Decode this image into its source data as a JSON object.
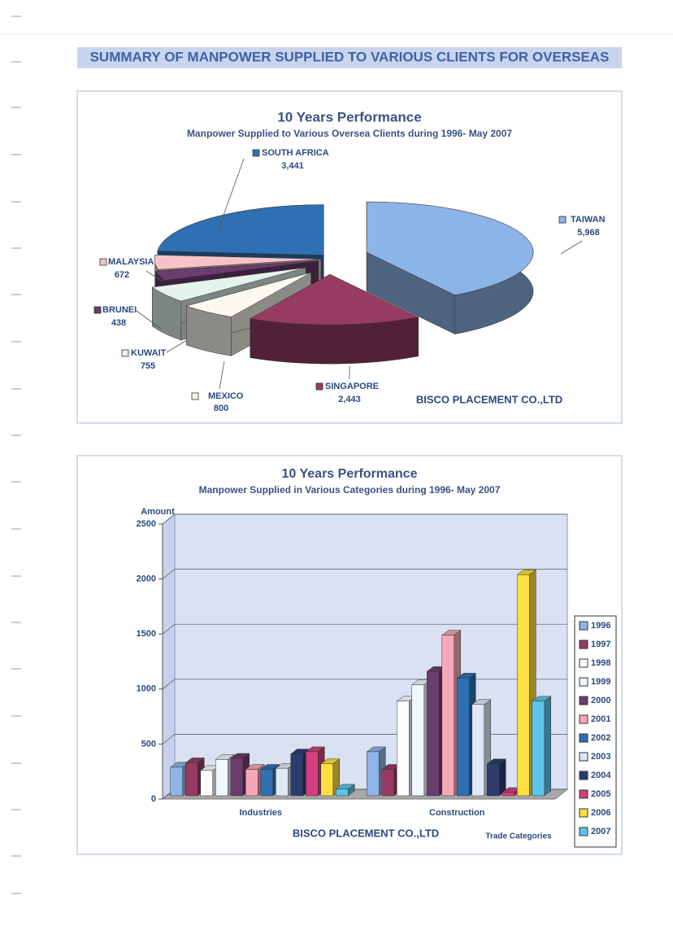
{
  "header": {
    "title": "SUMMARY OF MANPOWER SUPPLIED TO VARIOUS CLIENTS FOR OVERSEAS"
  },
  "chart_data": [
    {
      "type": "pie",
      "title": "10 Years Performance",
      "subtitle": "Manpower Supplied to Various Oversea Clients during 1996- May 2007",
      "categories": [
        "TAIWAN",
        "SINGAPORE",
        "MEXICO",
        "KUWAIT",
        "BRUNEI",
        "MALAYSIA",
        "SOUTH AFRICA"
      ],
      "values": [
        5968,
        2443,
        800,
        755,
        438,
        672,
        3441
      ],
      "value_labels": [
        "5,968",
        "2,443",
        "800",
        "755",
        "438",
        "672",
        "3,441"
      ],
      "colors": [
        "#8db4e6",
        "#963c62",
        "#fcfaf0",
        "#e4f4ec",
        "#6c3c6e",
        "#f6c4c8",
        "#2f70b2"
      ],
      "annotation": "BISCO PLACEMENT CO.,LTD"
    },
    {
      "type": "bar3d",
      "title": "10 Years Performance",
      "subtitle": "Manpower Supplied in Various Categories during 1996- May 2007",
      "y_label": "Amount",
      "x_label": "Trade Categories",
      "annotation": "BISCO PLACEMENT CO.,LTD",
      "categories": [
        "Industries",
        "Construction"
      ],
      "series": [
        {
          "name": "1996",
          "color": "#8db4e6",
          "values": [
            260,
            400
          ]
        },
        {
          "name": "1997",
          "color": "#963c62",
          "values": [
            300,
            240
          ]
        },
        {
          "name": "1998",
          "color": "#ffffff",
          "values": [
            230,
            860
          ]
        },
        {
          "name": "1999",
          "color": "#f0f8ff",
          "values": [
            330,
            1010
          ]
        },
        {
          "name": "2000",
          "color": "#6c3c6e",
          "values": [
            340,
            1130
          ]
        },
        {
          "name": "2001",
          "color": "#f6a8b8",
          "values": [
            240,
            1460
          ]
        },
        {
          "name": "2002",
          "color": "#2f70b2",
          "values": [
            240,
            1070
          ]
        },
        {
          "name": "2003",
          "color": "#e0e8f8",
          "values": [
            250,
            830
          ]
        },
        {
          "name": "2004",
          "color": "#2c3c6c",
          "values": [
            380,
            290
          ]
        },
        {
          "name": "2005",
          "color": "#d2407e",
          "values": [
            400,
            20
          ]
        },
        {
          "name": "2006",
          "color": "#ffe040",
          "values": [
            290,
            2010
          ]
        },
        {
          "name": "2007",
          "color": "#5cc6e8",
          "values": [
            60,
            860
          ]
        }
      ],
      "ylim": [
        0,
        2500
      ],
      "yticks": [
        0,
        500,
        1000,
        1500,
        2000,
        2500
      ],
      "grid": true,
      "legend": "right"
    }
  ]
}
